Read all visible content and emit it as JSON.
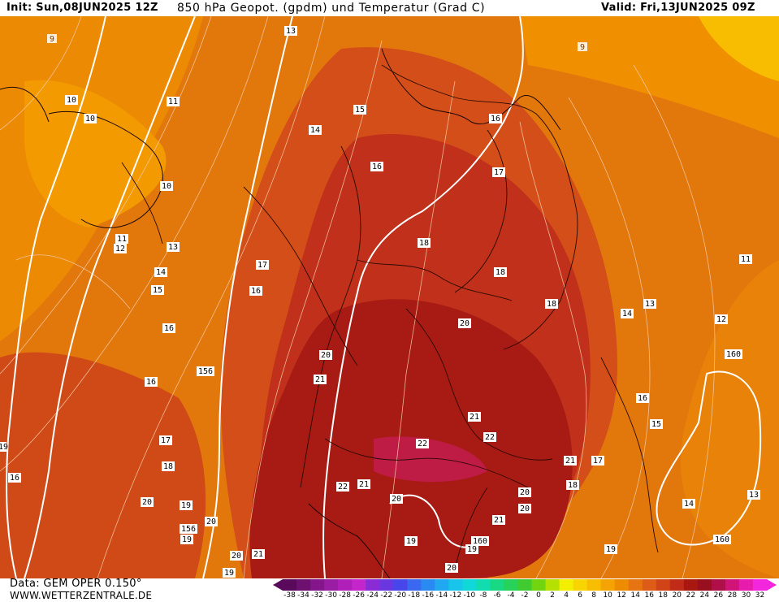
{
  "header": {
    "init": "Init: Sun,08JUN2025 12Z",
    "title": "850 hPa Geopot. (gpdm) und Temperatur (Grad C)",
    "valid": "Valid: Fri,13JUN2025 09Z"
  },
  "footer": {
    "source": "Data: GEM OPER 0.150°",
    "site": "WWW.WETTERZENTRALE.DE"
  },
  "colorbar": {
    "ticks": [
      "-38",
      "-34",
      "-32",
      "-30",
      "-28",
      "-26",
      "-24",
      "-22",
      "-20",
      "-18",
      "-16",
      "-14",
      "-12",
      "-10",
      "-8",
      "-6",
      "-4",
      "-2",
      "0",
      "2",
      "4",
      "6",
      "8",
      "10",
      "12",
      "14",
      "16",
      "18",
      "20",
      "22",
      "24",
      "26",
      "28",
      "30",
      "32"
    ],
    "colors": [
      "#5a0a5a",
      "#6e1070",
      "#82168a",
      "#9a1ea4",
      "#b020b8",
      "#c426cc",
      "#8a2cd6",
      "#6a36e0",
      "#4646ea",
      "#3a68f0",
      "#2a8af2",
      "#20a8f0",
      "#18c4ea",
      "#10d8d8",
      "#10dcb0",
      "#18d884",
      "#26d258",
      "#40cc30",
      "#70d410",
      "#b6e000",
      "#f2f000",
      "#f8d400",
      "#f8bc00",
      "#f4a400",
      "#ee8c00",
      "#e67410",
      "#dc5c18",
      "#d04418",
      "#c02c18",
      "#a81810",
      "#981020",
      "#b01048",
      "#d01478",
      "#e81cac",
      "#f226dc"
    ]
  },
  "map": {
    "temperature_labels": [
      "9",
      "10",
      "10",
      "11",
      "10",
      "11",
      "12",
      "13",
      "14",
      "15",
      "16",
      "17",
      "16",
      "16",
      "17",
      "18",
      "16",
      "19",
      "20",
      "20",
      "13",
      "14",
      "15",
      "16",
      "16",
      "17",
      "18",
      "18",
      "18",
      "19",
      "20",
      "20",
      "21",
      "21",
      "22",
      "22",
      "22",
      "21",
      "20",
      "21",
      "19",
      "19",
      "17",
      "18",
      "19",
      "20",
      "20",
      "21",
      "21",
      "19",
      "19",
      "20",
      "16",
      "15",
      "14",
      "13",
      "12",
      "11",
      "9",
      "14",
      "13",
      "20"
    ],
    "geopotential_labels": [
      "156",
      "156",
      "160",
      "160",
      "160"
    ]
  }
}
